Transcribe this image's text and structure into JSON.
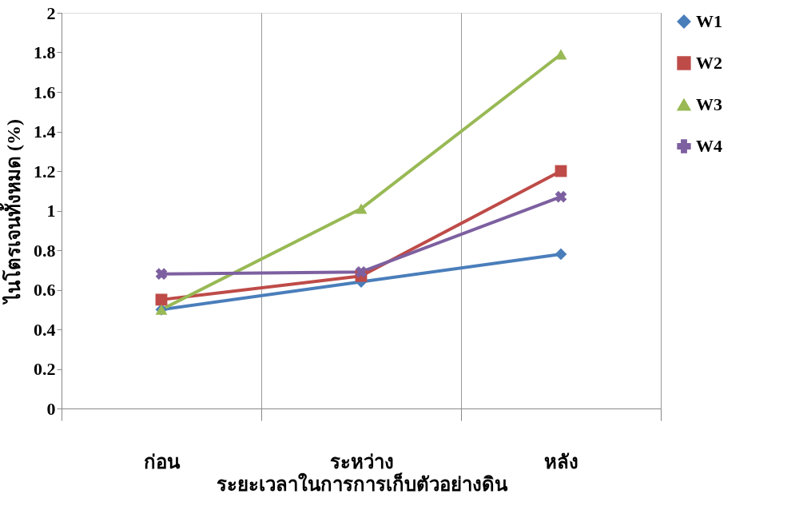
{
  "chart_data": {
    "type": "line",
    "xlabel": "ระยะเวลาในการการเก็บตัวอย่างดิน",
    "ylabel": "ไนโตรเจนทั้งหมด (%)",
    "categories": [
      "ก่อน",
      "ระหว่าง",
      "หลัง"
    ],
    "series": [
      {
        "name": "W1",
        "color": "#4a7ebb",
        "marker": "diamond",
        "values": [
          0.5,
          0.64,
          0.78
        ]
      },
      {
        "name": "W2",
        "color": "#be4b48",
        "marker": "square",
        "values": [
          0.55,
          0.67,
          1.2
        ]
      },
      {
        "name": "W3",
        "color": "#98b954",
        "marker": "triangle",
        "values": [
          0.5,
          1.01,
          1.79
        ]
      },
      {
        "name": "W4",
        "color": "#7d60a0",
        "marker": "cross",
        "values": [
          0.68,
          0.69,
          1.07
        ]
      }
    ],
    "ylim": [
      0,
      2
    ],
    "yticks": [
      0,
      0.2,
      0.4,
      0.6,
      0.8,
      1,
      1.2,
      1.4,
      1.6,
      1.8,
      2
    ],
    "grid": "x",
    "legend": "right",
    "line_style": "solid"
  }
}
